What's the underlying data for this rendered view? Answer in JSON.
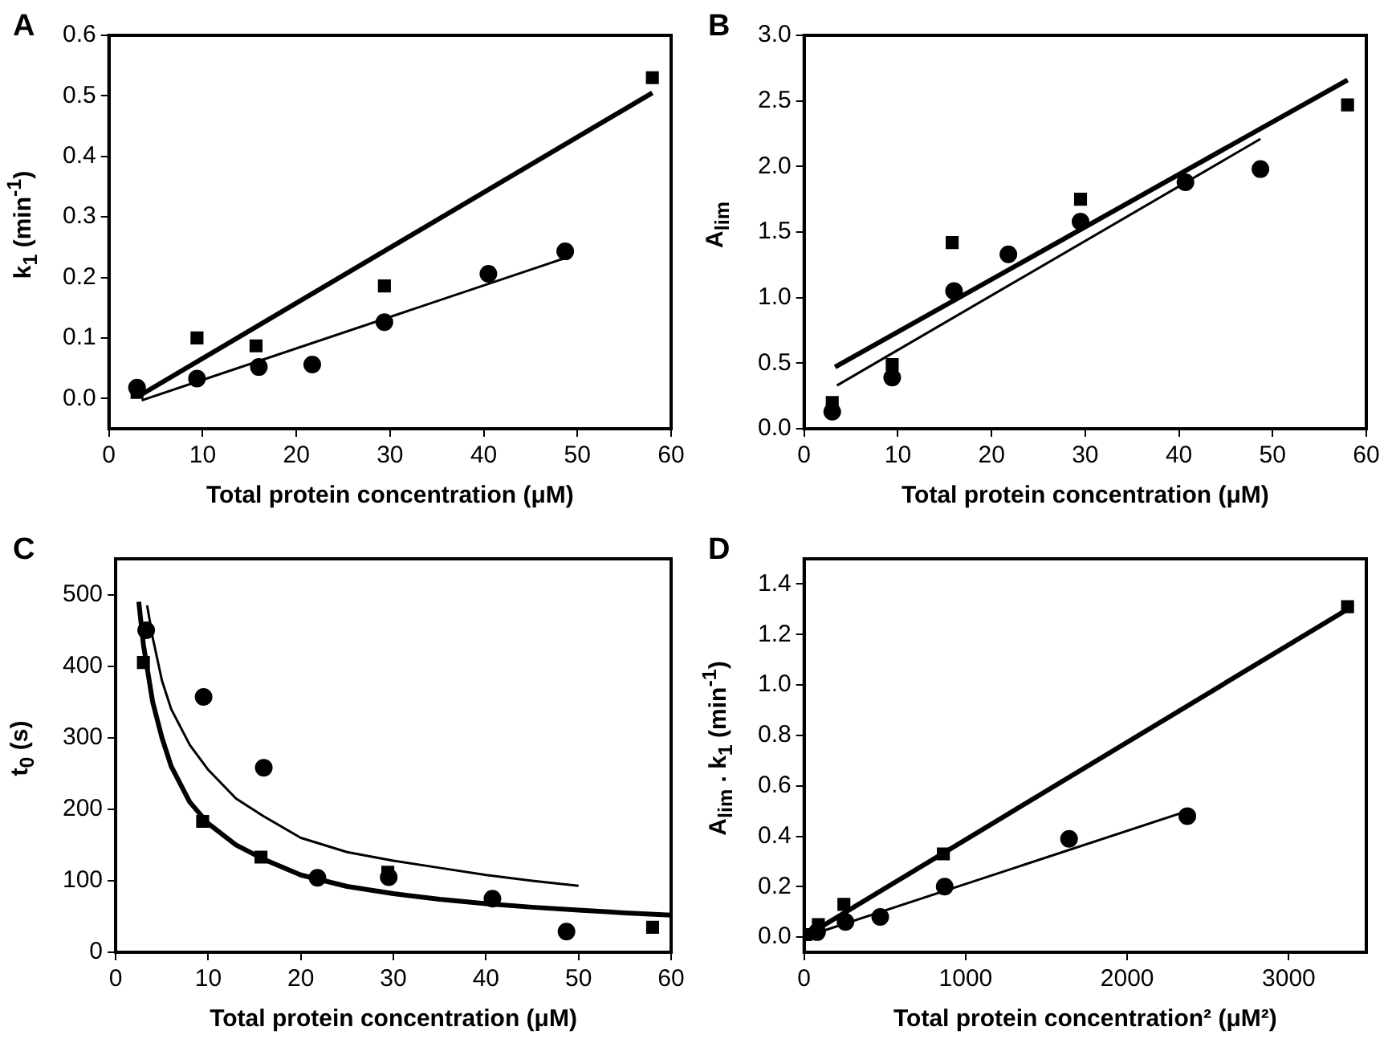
{
  "chart_data": [
    {
      "type": "scatter",
      "title": "A",
      "xlabel": "Total protein concentration (μM)",
      "ylabel": "k$_{1}$ (min$^{-1}$)",
      "xlim": [
        0,
        60
      ],
      "xticks": [
        0,
        10,
        20,
        30,
        40,
        50,
        60
      ],
      "ylim": [
        -0.05,
        0.6
      ],
      "yticks": [
        {
          "value": 0,
          "label": "0.0"
        },
        {
          "value": 0.1,
          "label": "0.1"
        },
        {
          "value": 0.2,
          "label": "0.2"
        },
        {
          "value": 0.3,
          "label": "0.3"
        },
        {
          "value": 0.4,
          "label": "0.4"
        },
        {
          "value": 0.5,
          "label": "0.5"
        },
        {
          "value": 0.6,
          "label": "0.6"
        }
      ],
      "grid": false,
      "legend": false,
      "series": [
        {
          "type": "line",
          "color": "#000000",
          "marker": "none",
          "x": [
            3.3,
            58
          ],
          "values": [
            0.005,
            0.505
          ]
        },
        {
          "type": "line",
          "color": "#000000",
          "marker": "none",
          "x": [
            3.5,
            48.7
          ],
          "values": [
            -0.003,
            0.232
          ]
        },
        {
          "type": "scatter",
          "color": "#000000",
          "marker": "square",
          "x": [
            3,
            9.4,
            15.7,
            29.4,
            58
          ],
          "values": [
            0.01,
            0.1,
            0.087,
            0.186,
            0.53
          ]
        },
        {
          "type": "scatter",
          "color": "#000000",
          "marker": "circle",
          "x": [
            3,
            9.4,
            16,
            21.7,
            29.4,
            40.5,
            48.7
          ],
          "values": [
            0.018,
            0.033,
            0.052,
            0.056,
            0.126,
            0.206,
            0.243
          ]
        }
      ]
    },
    {
      "type": "scatter",
      "title": "B",
      "xlabel": "Total protein concentration (μM)",
      "ylabel": "A$_{lim}$",
      "xlim": [
        0,
        60
      ],
      "xticks": [
        0,
        10,
        20,
        30,
        40,
        50,
        60
      ],
      "ylim": [
        0,
        3
      ],
      "yticks": [
        {
          "value": 0,
          "label": "0.0"
        },
        {
          "value": 0.5,
          "label": "0.5"
        },
        {
          "value": 1,
          "label": "1.0"
        },
        {
          "value": 1.5,
          "label": "1.5"
        },
        {
          "value": 2,
          "label": "2.0"
        },
        {
          "value": 2.5,
          "label": "2.5"
        },
        {
          "value": 3,
          "label": "3.0"
        }
      ],
      "grid": false,
      "legend": false,
      "series": [
        {
          "type": "line",
          "color": "#000000",
          "marker": "none",
          "x": [
            3.3,
            58
          ],
          "values": [
            0.47,
            2.66
          ]
        },
        {
          "type": "line",
          "color": "#000000",
          "marker": "none",
          "x": [
            3.5,
            48.7
          ],
          "values": [
            0.33,
            2.21
          ]
        },
        {
          "type": "scatter",
          "color": "#000000",
          "marker": "square",
          "x": [
            3,
            9.4,
            15.8,
            29.5,
            58
          ],
          "values": [
            0.2,
            0.49,
            1.42,
            1.75,
            2.47
          ]
        },
        {
          "type": "scatter",
          "color": "#000000",
          "marker": "circle",
          "x": [
            3,
            9.4,
            16,
            21.8,
            29.5,
            40.7,
            48.7
          ],
          "values": [
            0.13,
            0.39,
            1.05,
            1.33,
            1.58,
            1.88,
            1.98
          ]
        }
      ]
    },
    {
      "type": "scatter",
      "title": "C",
      "xlabel": "Total protein concentration (μM)",
      "ylabel": "t$_{0}$ (s)",
      "xlim": [
        0,
        60
      ],
      "xticks": [
        0,
        10,
        20,
        30,
        40,
        50,
        60
      ],
      "ylim": [
        0,
        550
      ],
      "yticks": [
        0,
        100,
        200,
        300,
        400,
        500
      ],
      "grid": false,
      "legend": false,
      "series": [
        {
          "type": "line",
          "color": "#000000",
          "marker": "none",
          "x": [
            2.5,
            3,
            4,
            5,
            6,
            8,
            10,
            13,
            16,
            20,
            25,
            30,
            35,
            40,
            45,
            50,
            55,
            60
          ],
          "values": [
            490,
            430,
            350,
            300,
            260,
            210,
            180,
            150,
            130,
            108,
            92,
            82,
            74,
            68,
            63,
            59,
            55,
            52
          ]
        },
        {
          "type": "line",
          "color": "#000000",
          "marker": "none",
          "x": [
            3.4,
            4,
            5,
            6,
            8,
            10,
            13,
            16,
            20,
            25,
            30,
            35,
            40,
            45,
            50
          ],
          "values": [
            485,
            440,
            380,
            340,
            290,
            255,
            215,
            190,
            160,
            140,
            128,
            118,
            108,
            100,
            93
          ]
        },
        {
          "type": "scatter",
          "color": "#000000",
          "marker": "square",
          "x": [
            3,
            9.4,
            15.7,
            29.4,
            58
          ],
          "values": [
            405,
            183,
            133,
            112,
            35
          ]
        },
        {
          "type": "scatter",
          "color": "#000000",
          "marker": "circle",
          "x": [
            3.3,
            9.5,
            16,
            21.8,
            29.5,
            40.7,
            48.7
          ],
          "values": [
            450,
            357,
            258,
            104,
            105,
            75,
            29
          ]
        }
      ]
    },
    {
      "type": "scatter",
      "title": "D",
      "xlabel": "Total protein concentration² (μM²)",
      "ylabel": "A$_{lim}$ . k$_{1}$ (min$^{-1}$)",
      "xlim": [
        0,
        3480
      ],
      "xticks": [
        0,
        1000,
        2000,
        3000
      ],
      "ylim": [
        -0.06,
        1.5
      ],
      "yticks": [
        {
          "value": 0,
          "label": "0.0"
        },
        {
          "value": 0.2,
          "label": "0.2"
        },
        {
          "value": 0.4,
          "label": "0.4"
        },
        {
          "value": 0.6,
          "label": "0.6"
        },
        {
          "value": 0.8,
          "label": "0.8"
        },
        {
          "value": 1,
          "label": "1.0"
        },
        {
          "value": 1.2,
          "label": "1.2"
        },
        {
          "value": 1.4,
          "label": "1.4"
        }
      ],
      "grid": false,
      "legend": false,
      "series": [
        {
          "type": "line",
          "color": "#000000",
          "marker": "none",
          "x": [
            0,
            3364
          ],
          "values": [
            0,
            1.3
          ]
        },
        {
          "type": "line",
          "color": "#000000",
          "marker": "none",
          "x": [
            0,
            2372
          ],
          "values": [
            0,
            0.5
          ]
        },
        {
          "type": "scatter",
          "color": "#000000",
          "marker": "square",
          "x": [
            9,
            88,
            246,
            862,
            3364
          ],
          "values": [
            0.01,
            0.05,
            0.13,
            0.33,
            1.31
          ]
        },
        {
          "type": "scatter",
          "color": "#000000",
          "marker": "circle",
          "x": [
            80,
            256,
            471,
            870,
            1640,
            2372
          ],
          "values": [
            0.02,
            0.06,
            0.08,
            0.2,
            0.39,
            0.48
          ]
        }
      ]
    }
  ]
}
